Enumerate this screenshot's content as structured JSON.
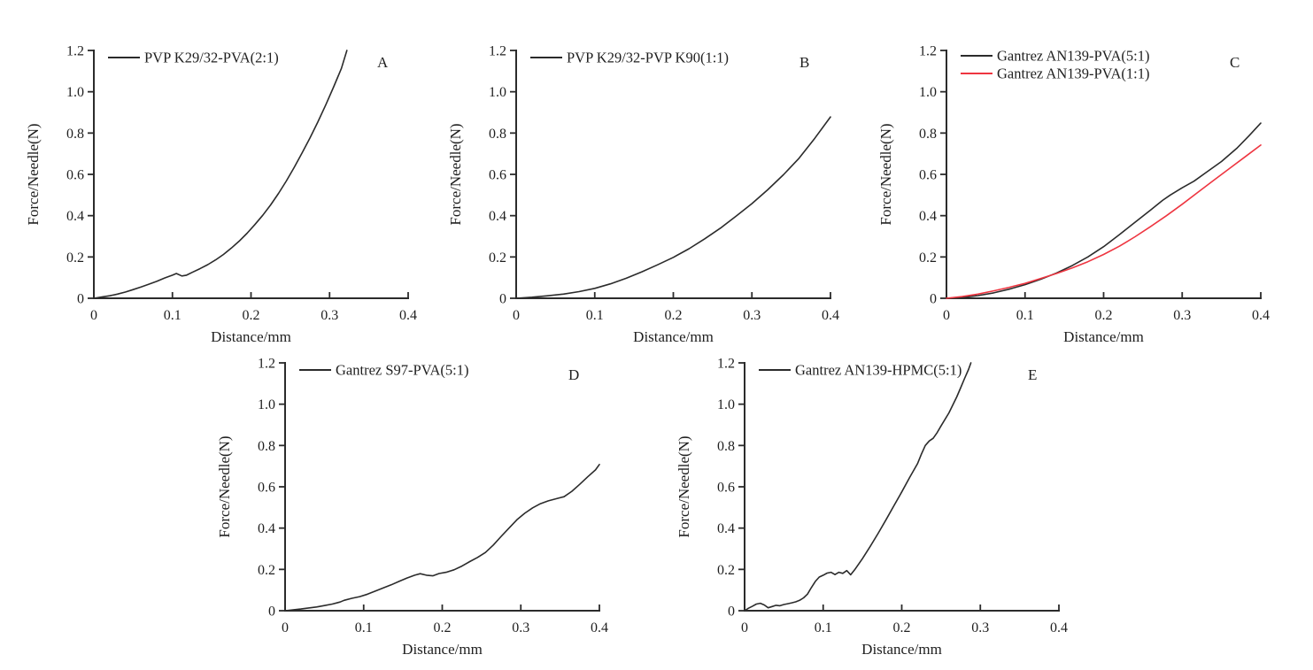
{
  "figure": {
    "background": "#ffffff",
    "text_color": "#1f1f1f",
    "axis_color": "#2b2b2b",
    "xlabel": "Distance/mm",
    "ylabel": "Force/Needle(N)"
  },
  "chart_data": [
    {
      "type": "line",
      "panel_letter": "A",
      "xlabel": "Distance/mm",
      "ylabel": "Force/Needle(N)",
      "xlim": [
        0,
        0.4
      ],
      "ylim": [
        0,
        1.2
      ],
      "xticks": [
        0,
        0.1,
        0.2,
        0.3,
        0.4
      ],
      "xtick_labels": [
        "0",
        "0.1",
        "0.2",
        "0.3",
        "0.4"
      ],
      "yticks": [
        0,
        0.2,
        0.4,
        0.6,
        0.8,
        1.0,
        1.2
      ],
      "ytick_labels": [
        "0",
        "0.2",
        "0.4",
        "0.6",
        "0.8",
        "1.0",
        "1.2"
      ],
      "grid": false,
      "legend_position": "top-left",
      "series": [
        {
          "name": "PVP K29/32-PVA(2:1)",
          "color": "#2b2b2b",
          "points": [
            [
              0,
              0
            ],
            [
              0.01,
              0.006
            ],
            [
              0.02,
              0.012
            ],
            [
              0.03,
              0.02
            ],
            [
              0.04,
              0.03
            ],
            [
              0.05,
              0.042
            ],
            [
              0.06,
              0.055
            ],
            [
              0.07,
              0.068
            ],
            [
              0.08,
              0.082
            ],
            [
              0.09,
              0.098
            ],
            [
              0.095,
              0.105
            ],
            [
              0.1,
              0.112
            ],
            [
              0.105,
              0.12
            ],
            [
              0.112,
              0.108
            ],
            [
              0.118,
              0.112
            ],
            [
              0.125,
              0.125
            ],
            [
              0.135,
              0.143
            ],
            [
              0.145,
              0.163
            ],
            [
              0.155,
              0.186
            ],
            [
              0.165,
              0.212
            ],
            [
              0.175,
              0.243
            ],
            [
              0.185,
              0.277
            ],
            [
              0.195,
              0.315
            ],
            [
              0.205,
              0.357
            ],
            [
              0.215,
              0.402
            ],
            [
              0.225,
              0.452
            ],
            [
              0.235,
              0.508
            ],
            [
              0.245,
              0.568
            ],
            [
              0.255,
              0.634
            ],
            [
              0.265,
              0.704
            ],
            [
              0.275,
              0.776
            ],
            [
              0.285,
              0.853
            ],
            [
              0.295,
              0.935
            ],
            [
              0.305,
              1.022
            ],
            [
              0.315,
              1.113
            ],
            [
              0.322,
              1.2
            ]
          ]
        }
      ]
    },
    {
      "type": "line",
      "panel_letter": "B",
      "xlabel": "Distance/mm",
      "ylabel": "Force/Needle(N)",
      "xlim": [
        0,
        0.4
      ],
      "ylim": [
        0,
        1.2
      ],
      "xticks": [
        0,
        0.1,
        0.2,
        0.3,
        0.4
      ],
      "xtick_labels": [
        "0",
        "0.1",
        "0.2",
        "0.3",
        "0.4"
      ],
      "yticks": [
        0,
        0.2,
        0.4,
        0.6,
        0.8,
        1.0,
        1.2
      ],
      "ytick_labels": [
        "0",
        "0.2",
        "0.4",
        "0.6",
        "0.8",
        "1.0",
        "1.2"
      ],
      "grid": false,
      "legend_position": "top-left",
      "series": [
        {
          "name": "PVP K29/32-PVP K90(1:1)",
          "color": "#2b2b2b",
          "points": [
            [
              0,
              0
            ],
            [
              0.02,
              0.005
            ],
            [
              0.04,
              0.012
            ],
            [
              0.06,
              0.02
            ],
            [
              0.08,
              0.032
            ],
            [
              0.1,
              0.048
            ],
            [
              0.12,
              0.07
            ],
            [
              0.14,
              0.097
            ],
            [
              0.16,
              0.128
            ],
            [
              0.18,
              0.162
            ],
            [
              0.2,
              0.198
            ],
            [
              0.22,
              0.24
            ],
            [
              0.24,
              0.288
            ],
            [
              0.26,
              0.34
            ],
            [
              0.28,
              0.398
            ],
            [
              0.3,
              0.458
            ],
            [
              0.32,
              0.525
            ],
            [
              0.34,
              0.598
            ],
            [
              0.36,
              0.678
            ],
            [
              0.38,
              0.775
            ],
            [
              0.4,
              0.878
            ]
          ]
        }
      ]
    },
    {
      "type": "line",
      "panel_letter": "C",
      "xlabel": "Distance/mm",
      "ylabel": "Force/Needle(N)",
      "xlim": [
        0,
        0.4
      ],
      "ylim": [
        0,
        1.2
      ],
      "xticks": [
        0,
        0.1,
        0.2,
        0.3,
        0.4
      ],
      "xtick_labels": [
        "0",
        "0.1",
        "0.2",
        "0.3",
        "0.4"
      ],
      "yticks": [
        0,
        0.2,
        0.4,
        0.6,
        0.8,
        1.0,
        1.2
      ],
      "ytick_labels": [
        "0",
        "0.2",
        "0.4",
        "0.6",
        "0.8",
        "1.0",
        "1.2"
      ],
      "grid": false,
      "legend_position": "top-left",
      "series": [
        {
          "name": "Gantrez AN139-PVA(5:1)",
          "color": "#2b2b2b",
          "points": [
            [
              0,
              0
            ],
            [
              0.02,
              0.004
            ],
            [
              0.04,
              0.013
            ],
            [
              0.06,
              0.026
            ],
            [
              0.08,
              0.044
            ],
            [
              0.1,
              0.066
            ],
            [
              0.12,
              0.092
            ],
            [
              0.14,
              0.122
            ],
            [
              0.16,
              0.158
            ],
            [
              0.18,
              0.2
            ],
            [
              0.2,
              0.25
            ],
            [
              0.22,
              0.308
            ],
            [
              0.24,
              0.368
            ],
            [
              0.26,
              0.428
            ],
            [
              0.275,
              0.474
            ],
            [
              0.285,
              0.5
            ],
            [
              0.3,
              0.535
            ],
            [
              0.315,
              0.567
            ],
            [
              0.33,
              0.608
            ],
            [
              0.35,
              0.662
            ],
            [
              0.37,
              0.728
            ],
            [
              0.385,
              0.787
            ],
            [
              0.4,
              0.848
            ]
          ]
        },
        {
          "name": "Gantrez AN139-PVA(1:1)",
          "color": "#ee3540",
          "points": [
            [
              0,
              0
            ],
            [
              0.02,
              0.008
            ],
            [
              0.04,
              0.02
            ],
            [
              0.06,
              0.036
            ],
            [
              0.08,
              0.053
            ],
            [
              0.1,
              0.072
            ],
            [
              0.12,
              0.096
            ],
            [
              0.14,
              0.12
            ],
            [
              0.16,
              0.147
            ],
            [
              0.18,
              0.177
            ],
            [
              0.2,
              0.212
            ],
            [
              0.22,
              0.252
            ],
            [
              0.24,
              0.298
            ],
            [
              0.26,
              0.348
            ],
            [
              0.28,
              0.4
            ],
            [
              0.3,
              0.455
            ],
            [
              0.32,
              0.513
            ],
            [
              0.34,
              0.571
            ],
            [
              0.36,
              0.628
            ],
            [
              0.38,
              0.685
            ],
            [
              0.4,
              0.742
            ]
          ]
        }
      ]
    },
    {
      "type": "line",
      "panel_letter": "D",
      "xlabel": "Distance/mm",
      "ylabel": "Force/Needle(N)",
      "xlim": [
        0,
        0.4
      ],
      "ylim": [
        0,
        1.2
      ],
      "xticks": [
        0,
        0.1,
        0.2,
        0.3,
        0.4
      ],
      "xtick_labels": [
        "0",
        "0.1",
        "0.2",
        "0.3",
        "0.4"
      ],
      "yticks": [
        0,
        0.2,
        0.4,
        0.6,
        0.8,
        1.0,
        1.2
      ],
      "ytick_labels": [
        "0",
        "0.2",
        "0.4",
        "0.6",
        "0.8",
        "1.0",
        "1.2"
      ],
      "grid": false,
      "legend_position": "top-left",
      "series": [
        {
          "name": "Gantrez S97-PVA(5:1)",
          "color": "#2b2b2b",
          "points": [
            [
              0,
              0
            ],
            [
              0.02,
              0.008
            ],
            [
              0.04,
              0.018
            ],
            [
              0.05,
              0.025
            ],
            [
              0.06,
              0.032
            ],
            [
              0.07,
              0.042
            ],
            [
              0.075,
              0.05
            ],
            [
              0.085,
              0.06
            ],
            [
              0.095,
              0.068
            ],
            [
              0.105,
              0.08
            ],
            [
              0.115,
              0.095
            ],
            [
              0.125,
              0.11
            ],
            [
              0.135,
              0.125
            ],
            [
              0.145,
              0.142
            ],
            [
              0.155,
              0.158
            ],
            [
              0.165,
              0.172
            ],
            [
              0.172,
              0.179
            ],
            [
              0.18,
              0.172
            ],
            [
              0.188,
              0.169
            ],
            [
              0.196,
              0.18
            ],
            [
              0.205,
              0.186
            ],
            [
              0.215,
              0.198
            ],
            [
              0.225,
              0.216
            ],
            [
              0.235,
              0.238
            ],
            [
              0.245,
              0.258
            ],
            [
              0.255,
              0.282
            ],
            [
              0.265,
              0.318
            ],
            [
              0.275,
              0.36
            ],
            [
              0.285,
              0.4
            ],
            [
              0.295,
              0.44
            ],
            [
              0.305,
              0.472
            ],
            [
              0.315,
              0.498
            ],
            [
              0.325,
              0.518
            ],
            [
              0.335,
              0.532
            ],
            [
              0.345,
              0.542
            ],
            [
              0.355,
              0.552
            ],
            [
              0.365,
              0.578
            ],
            [
              0.375,
              0.612
            ],
            [
              0.385,
              0.648
            ],
            [
              0.395,
              0.682
            ],
            [
              0.4,
              0.708
            ]
          ]
        }
      ]
    },
    {
      "type": "line",
      "panel_letter": "E",
      "xlabel": "Distance/mm",
      "ylabel": "Force/Needle(N)",
      "xlim": [
        0,
        0.4
      ],
      "ylim": [
        0,
        1.2
      ],
      "xticks": [
        0,
        0.1,
        0.2,
        0.3,
        0.4
      ],
      "xtick_labels": [
        "0",
        "0.1",
        "0.2",
        "0.3",
        "0.4"
      ],
      "yticks": [
        0,
        0.2,
        0.4,
        0.6,
        0.8,
        1.0,
        1.2
      ],
      "ytick_labels": [
        "0",
        "0.2",
        "0.4",
        "0.6",
        "0.8",
        "1.0",
        "1.2"
      ],
      "grid": false,
      "legend_position": "top-left",
      "series": [
        {
          "name": "Gantrez AN139-HPMC(5:1)",
          "color": "#2b2b2b",
          "points": [
            [
              0,
              0
            ],
            [
              0.005,
              0.012
            ],
            [
              0.01,
              0.022
            ],
            [
              0.015,
              0.032
            ],
            [
              0.02,
              0.036
            ],
            [
              0.025,
              0.028
            ],
            [
              0.03,
              0.014
            ],
            [
              0.035,
              0.02
            ],
            [
              0.04,
              0.026
            ],
            [
              0.045,
              0.024
            ],
            [
              0.05,
              0.03
            ],
            [
              0.055,
              0.034
            ],
            [
              0.06,
              0.038
            ],
            [
              0.065,
              0.043
            ],
            [
              0.07,
              0.05
            ],
            [
              0.075,
              0.062
            ],
            [
              0.08,
              0.08
            ],
            [
              0.085,
              0.112
            ],
            [
              0.09,
              0.142
            ],
            [
              0.095,
              0.163
            ],
            [
              0.1,
              0.172
            ],
            [
              0.105,
              0.182
            ],
            [
              0.11,
              0.186
            ],
            [
              0.115,
              0.175
            ],
            [
              0.12,
              0.186
            ],
            [
              0.125,
              0.181
            ],
            [
              0.13,
              0.194
            ],
            [
              0.135,
              0.174
            ],
            [
              0.14,
              0.198
            ],
            [
              0.15,
              0.252
            ],
            [
              0.16,
              0.312
            ],
            [
              0.17,
              0.375
            ],
            [
              0.18,
              0.44
            ],
            [
              0.19,
              0.508
            ],
            [
              0.2,
              0.575
            ],
            [
              0.21,
              0.645
            ],
            [
              0.22,
              0.712
            ],
            [
              0.225,
              0.758
            ],
            [
              0.23,
              0.8
            ],
            [
              0.235,
              0.822
            ],
            [
              0.24,
              0.835
            ],
            [
              0.245,
              0.862
            ],
            [
              0.25,
              0.895
            ],
            [
              0.26,
              0.958
            ],
            [
              0.27,
              1.035
            ],
            [
              0.275,
              1.08
            ],
            [
              0.28,
              1.125
            ],
            [
              0.285,
              1.168
            ],
            [
              0.288,
              1.2
            ]
          ]
        }
      ]
    }
  ]
}
